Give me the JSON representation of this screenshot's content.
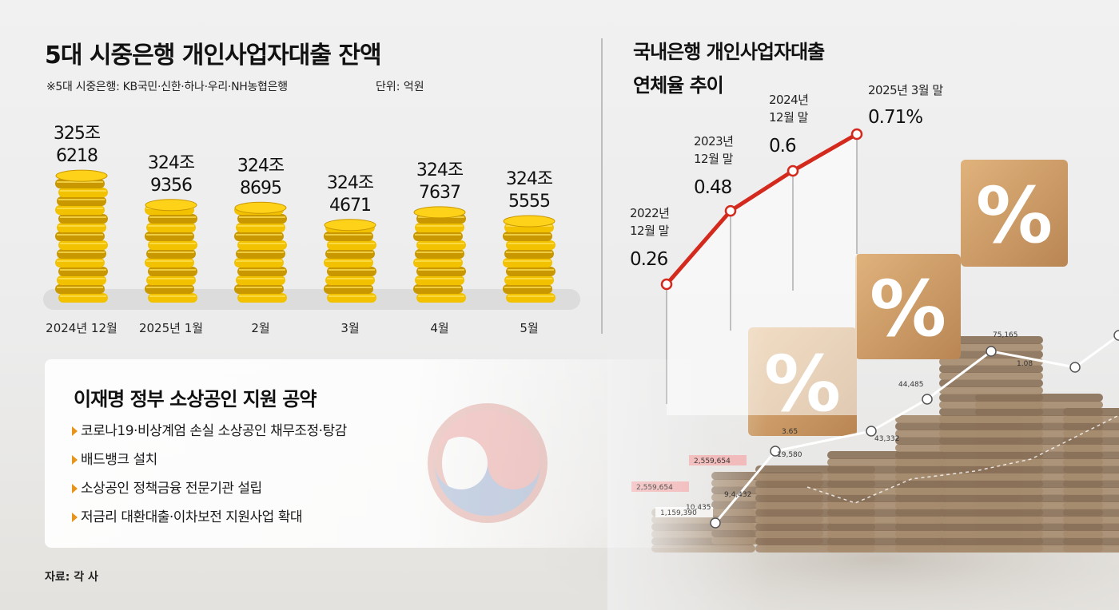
{
  "left_chart": {
    "title": "5대 시중은행 개인사업자대출 잔액",
    "note": "※5대 시중은행: KB국민·신한·하나·우리·NH농협은행",
    "unit": "단위: 억원"
  },
  "right_chart": {
    "title_line1": "국내은행 개인사업자대출",
    "title_line2": "연체율 추이"
  },
  "pledges": {
    "title": "이재명 정부 소상공인 지원 공약",
    "items": [
      "코로나19·비상계엄 손실 소상공인 채무조정·탕감",
      "배드뱅크 설치",
      "소상공인 정책금융 전문기관 설립",
      "저금리 대환대출·이차보전 지원사업 확대"
    ]
  },
  "source": "자료: 각 사",
  "colors": {
    "coin_gold": "#f2c200",
    "coin_dark": "#c99700",
    "line_red": "#d42a1e",
    "bullet_orange": "#e8941a",
    "shelf_gray": "#dcdcdc"
  },
  "decor": {
    "percent_symbol": "%",
    "ticker_values": [
      "2,559,654",
      "2,559,654",
      "1,159,390",
      "10,435",
      "9,4,432",
      "19,580",
      "3.65",
      "43,332",
      "44,485",
      "75,165",
      "1.08"
    ]
  },
  "chart_data": [
    {
      "type": "bar",
      "title": "5대 시중은행 개인사업자대출 잔액",
      "unit": "억원",
      "categories": [
        "2024년 12월",
        "2025년 1월",
        "2월",
        "3월",
        "4월",
        "5월"
      ],
      "values": [
        3256218,
        3249356,
        3248695,
        3244671,
        3247637,
        3245555
      ],
      "label_top": [
        "325조",
        "324조",
        "324조",
        "324조",
        "324조",
        "324조"
      ],
      "label_bottom": [
        "6218",
        "9356",
        "8695",
        "4671",
        "7637",
        "5555"
      ]
    },
    {
      "type": "line",
      "title": "국내은행 개인사업자대출 연체율 추이",
      "unit": "%",
      "series": [
        {
          "x_line1": [
            "2022년",
            "2023년",
            "2024년",
            "2025년 3월 말"
          ],
          "x_line2": [
            "12월 말",
            "12월 말",
            "12월 말",
            ""
          ],
          "values": [
            0.26,
            0.48,
            0.6,
            0.71
          ],
          "labels": [
            "0.26",
            "0.48",
            "0.6",
            "0.71%"
          ]
        }
      ]
    }
  ]
}
